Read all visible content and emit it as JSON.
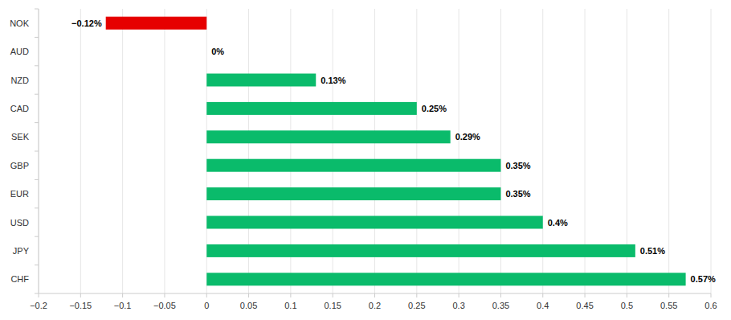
{
  "chart_data": {
    "type": "bar",
    "orientation": "horizontal",
    "categories": [
      "NOK",
      "AUD",
      "NZD",
      "CAD",
      "SEK",
      "GBP",
      "EUR",
      "USD",
      "JPY",
      "CHF"
    ],
    "values": [
      -0.12,
      0,
      0.13,
      0.25,
      0.29,
      0.35,
      0.35,
      0.4,
      0.51,
      0.57
    ],
    "value_labels": [
      "−0.12%",
      "0%",
      "0.13%",
      "0.25%",
      "0.29%",
      "0.35%",
      "0.35%",
      "0.4%",
      "0.51%",
      "0.57%"
    ],
    "colors": [
      "#e60000",
      "#0abb6b",
      "#0abb6b",
      "#0abb6b",
      "#0abb6b",
      "#0abb6b",
      "#0abb6b",
      "#0abb6b",
      "#0abb6b",
      "#0abb6b"
    ],
    "xlim": [
      -0.2,
      0.6
    ],
    "xticks": [
      {
        "value": -0.2,
        "label": "−0.2"
      },
      {
        "value": -0.15,
        "label": "−0.15"
      },
      {
        "value": -0.1,
        "label": "−0.1"
      },
      {
        "value": -0.05,
        "label": "−0.05"
      },
      0,
      0.05,
      0.1,
      0.15,
      0.2,
      0.25,
      0.3,
      0.35,
      0.4,
      0.45,
      0.5,
      0.55,
      0.6
    ],
    "grid": true,
    "data_labels": true
  }
}
